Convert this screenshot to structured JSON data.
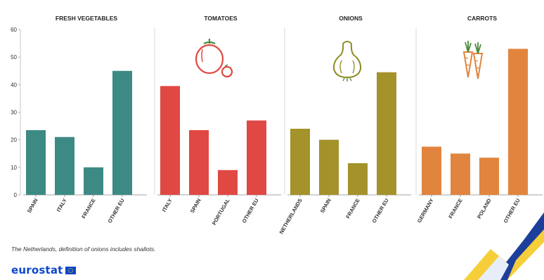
{
  "chart_data": {
    "type": "bar",
    "ylim": [
      0,
      60
    ],
    "yticks": [
      0,
      10,
      20,
      30,
      40,
      50,
      60
    ],
    "panels": [
      {
        "title": "FRESH VEGETABLES",
        "categories": [
          "SPAIN",
          "ITALY",
          "FRANCE",
          "OTHER EU"
        ],
        "values": [
          23.5,
          21,
          10,
          45
        ],
        "color": "#3d8a85",
        "icon": ""
      },
      {
        "title": "TOMATOES",
        "categories": [
          "ITALY",
          "SPAIN",
          "PORTUGAL",
          "OTHER EU"
        ],
        "values": [
          39.5,
          23.5,
          9,
          27
        ],
        "color": "#e04843",
        "icon": "tomato-icon"
      },
      {
        "title": "ONIONS",
        "categories": [
          "NETHERLANDS",
          "SPAIN",
          "FRANCE",
          "OTHER EU"
        ],
        "values": [
          24,
          20,
          11.5,
          44.5
        ],
        "color": "#a4922a",
        "icon": "onion-icon"
      },
      {
        "title": "CARROTS",
        "categories": [
          "GERMANY",
          "FRANCE",
          "POLAND",
          "OTHER EU"
        ],
        "values": [
          17.5,
          15,
          13.5,
          53
        ],
        "color": "#e1853e",
        "icon": "carrot-icon"
      }
    ]
  },
  "footnote": "The Netherlands, definition of onions includes shallots.",
  "brand": {
    "name": "eurostat",
    "color": "#0e47cb"
  }
}
